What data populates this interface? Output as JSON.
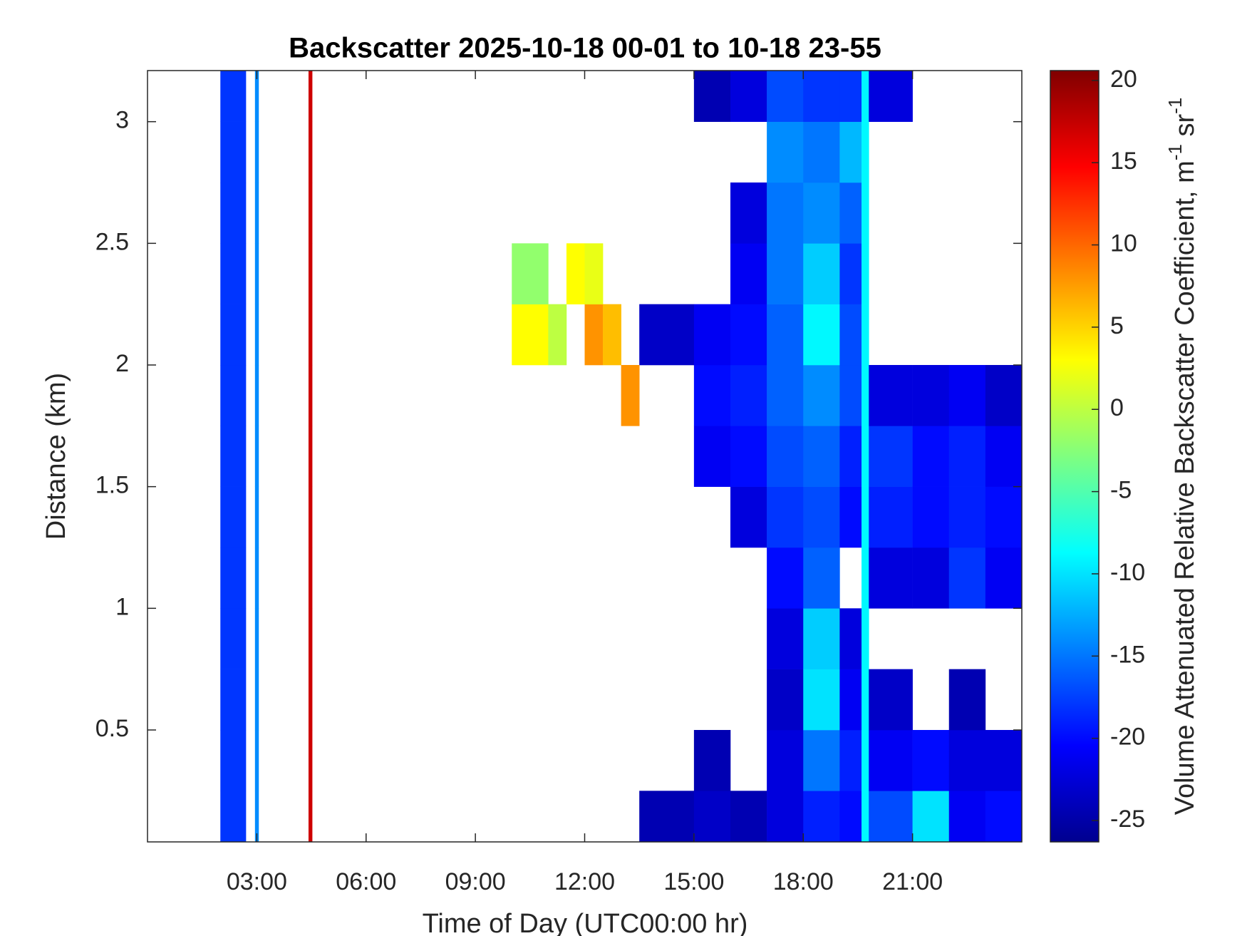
{
  "chart_data": {
    "type": "heatmap",
    "title": "Backscatter 2025-10-18 00-01 to 10-18 23-55",
    "x_label": "Time of Day (UTC00:00 hr)",
    "y_label": "Distance (km)",
    "colorbar_label": [
      "Volume Attenuated Relative Backscatter Coefficient, m",
      "-1",
      " sr",
      "-1"
    ],
    "colormap": "jet",
    "xlim": [
      0,
      24
    ],
    "ylim": [
      0.04,
      3.21
    ],
    "clim": [
      -26.3,
      20.6
    ],
    "xticks": [
      {
        "value": 3,
        "label": "03:00"
      },
      {
        "value": 6,
        "label": "06:00"
      },
      {
        "value": 9,
        "label": "09:00"
      },
      {
        "value": 12,
        "label": "12:00"
      },
      {
        "value": 15,
        "label": "15:00"
      },
      {
        "value": 18,
        "label": "18:00"
      },
      {
        "value": 21,
        "label": "21:00"
      }
    ],
    "yticks": [
      0.5,
      1,
      1.5,
      2,
      2.5,
      3
    ],
    "cticks": [
      -25,
      -20,
      -15,
      -10,
      -5,
      0,
      5,
      10,
      15,
      20
    ],
    "x_bins": [
      0,
      2,
      2.7,
      2.95,
      3.05,
      4.42,
      4.52,
      10,
      11,
      11.5,
      12,
      12.5,
      13,
      13.5,
      15,
      16,
      17,
      18,
      19,
      19.6,
      19.8,
      21,
      22,
      23,
      24
    ],
    "y_bins": [
      0.04,
      0.25,
      0.5,
      0.75,
      1,
      1.25,
      1.5,
      1.75,
      2,
      2.25,
      2.5,
      2.75,
      3,
      3.21
    ],
    "z": [
      [
        null,
        null,
        null,
        null,
        null,
        null,
        null,
        null,
        null,
        null,
        null,
        null,
        null
      ],
      [
        -18,
        -18,
        -18,
        -18,
        -18,
        -18,
        -18,
        -18,
        -18,
        -18,
        -18,
        -18,
        -18
      ],
      [
        null,
        null,
        null,
        null,
        null,
        null,
        null,
        null,
        null,
        null,
        null,
        null,
        null
      ],
      [
        -14,
        -14,
        -14,
        -14,
        -14,
        -14,
        -14,
        -14,
        -14,
        -14,
        -14,
        -14,
        -14
      ],
      [
        null,
        null,
        null,
        null,
        null,
        null,
        null,
        null,
        null,
        null,
        null,
        null,
        null
      ],
      [
        17,
        17,
        17,
        17,
        17,
        17,
        17,
        17,
        17,
        17,
        17,
        17,
        17
      ],
      [
        null,
        null,
        null,
        null,
        null,
        null,
        null,
        null,
        null,
        null,
        null,
        null,
        null
      ],
      [
        null,
        null,
        null,
        null,
        null,
        null,
        null,
        null,
        3,
        -2,
        null,
        null,
        null
      ],
      [
        null,
        null,
        null,
        null,
        null,
        null,
        null,
        null,
        0,
        null,
        null,
        null,
        null
      ],
      [
        null,
        null,
        null,
        null,
        null,
        null,
        null,
        null,
        null,
        3,
        null,
        null,
        null
      ],
      [
        null,
        null,
        null,
        null,
        null,
        null,
        null,
        null,
        8,
        2,
        null,
        null,
        null
      ],
      [
        null,
        null,
        null,
        null,
        null,
        null,
        null,
        null,
        6,
        null,
        null,
        null,
        null
      ],
      [
        null,
        null,
        null,
        null,
        null,
        null,
        null,
        8,
        null,
        null,
        null,
        null,
        null
      ],
      [
        -24,
        null,
        null,
        null,
        null,
        null,
        null,
        null,
        -23,
        null,
        null,
        null,
        null
      ],
      [
        -23,
        -24,
        null,
        null,
        null,
        null,
        -21,
        -20,
        -21,
        null,
        null,
        null,
        -24
      ],
      [
        -24,
        null,
        null,
        null,
        null,
        -22,
        -20,
        -19,
        -20,
        -21,
        -22,
        null,
        -22
      ],
      [
        -22,
        -22,
        -23,
        -22,
        -20,
        -18,
        -17,
        -16,
        -16,
        -15,
        -15,
        -14,
        -17
      ],
      [
        -19,
        -15,
        -10,
        -11,
        -16,
        -17,
        -16,
        -14,
        -9,
        -11,
        -14,
        -15,
        -18
      ],
      [
        -20,
        -19,
        -21,
        -22,
        null,
        -20,
        -19,
        -17,
        -17,
        -18,
        -16,
        -12,
        -18
      ],
      [
        -9,
        -9,
        -9,
        -9,
        -9,
        -9,
        -9,
        -9,
        -9,
        -9,
        -9,
        -9,
        -9
      ],
      [
        -17,
        -21,
        -23,
        null,
        -22,
        -19,
        -18,
        -22,
        null,
        null,
        null,
        null,
        -22
      ],
      [
        -10,
        -20,
        null,
        null,
        -22,
        -20,
        -20,
        -22,
        null,
        null,
        null,
        null,
        null
      ],
      [
        -21,
        -22,
        -24,
        null,
        -18,
        -19,
        -19,
        -21,
        null,
        null,
        null,
        null,
        null
      ],
      [
        -20,
        -22,
        null,
        null,
        -21,
        -20,
        -21,
        -23,
        null,
        null,
        null,
        null,
        null
      ]
    ]
  }
}
